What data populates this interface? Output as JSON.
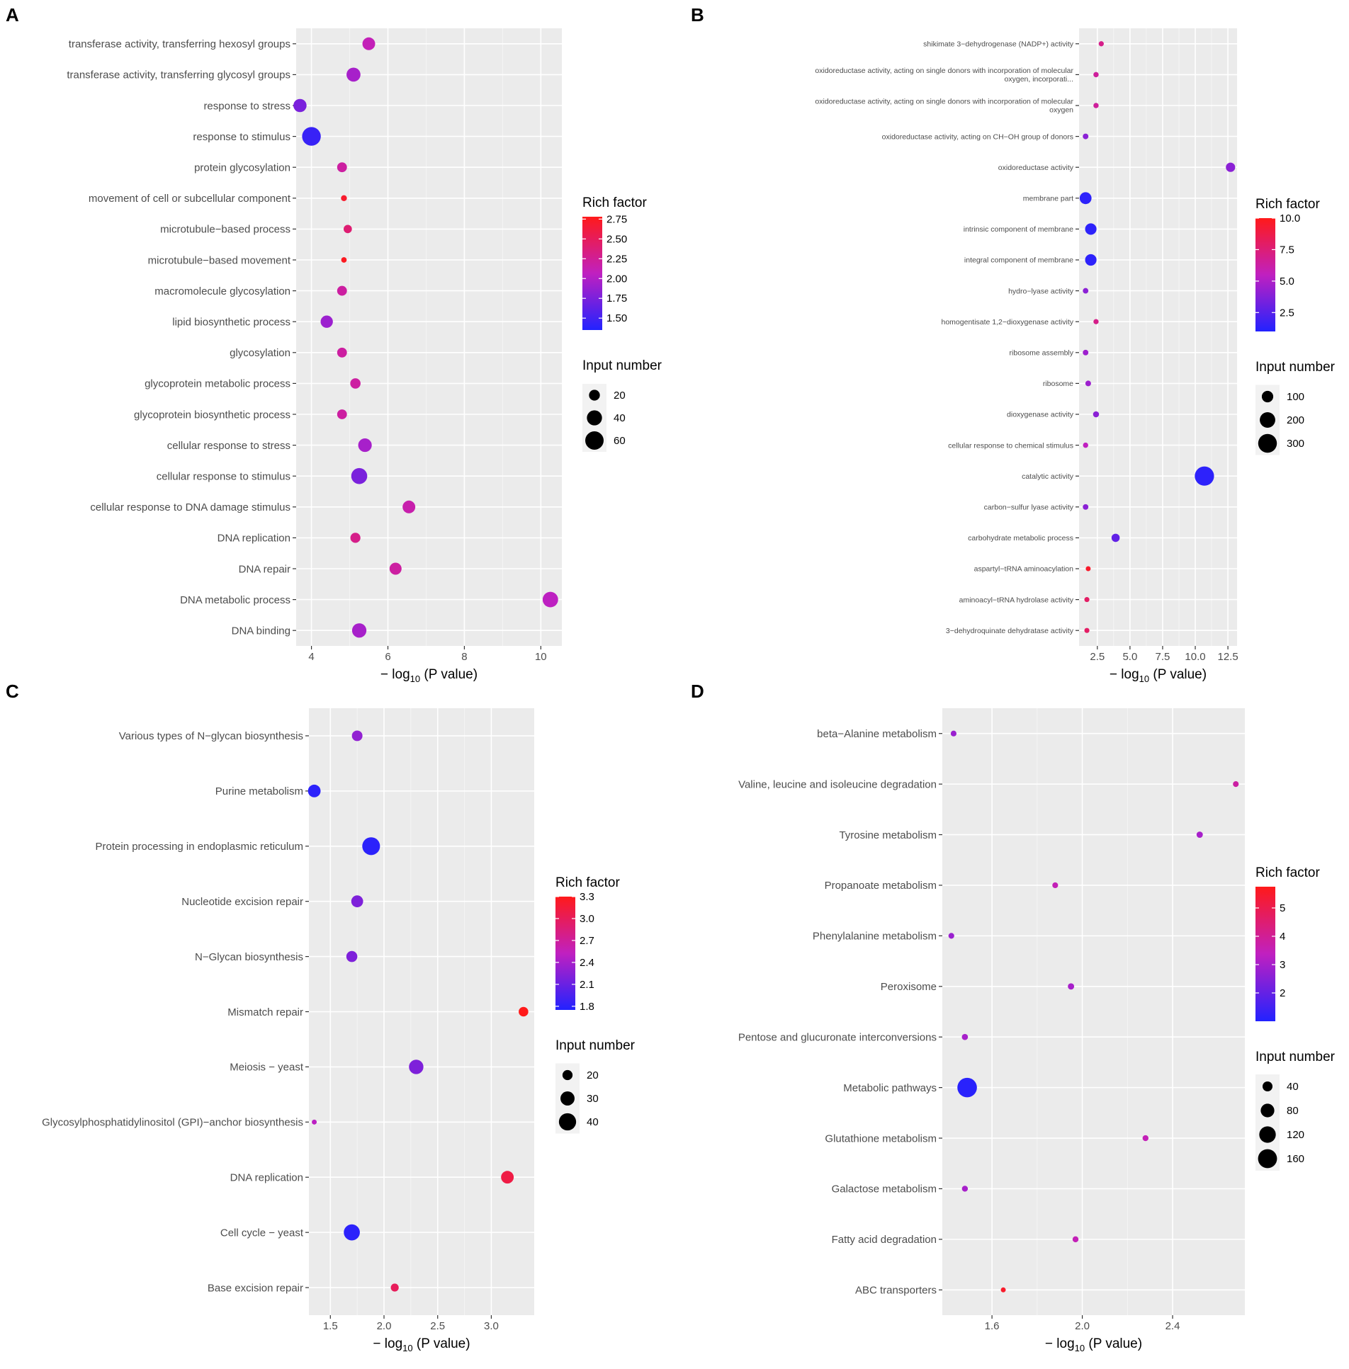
{
  "colors": {
    "low": "#2222ff",
    "mid": "#c020c0",
    "high": "#ff1a1a",
    "panel_bg": "#ebebeb",
    "grid": "#ffffff"
  },
  "legend": {
    "rich_title": "Rich factor",
    "size_title": "Input number"
  },
  "axis": {
    "xlabel_prefix": "− log",
    "xlabel_sub": "10",
    "xlabel_suffix": " (P value)"
  },
  "chart_data": [
    {
      "panel": "A",
      "type": "scatter",
      "xlabel": "− log10 (P value)",
      "xlim": [
        3.6,
        10.55
      ],
      "xticks": [
        4,
        6,
        8,
        10
      ],
      "xtick_labels": [
        "4",
        "6",
        "8",
        "10"
      ],
      "color_range": [
        1.35,
        2.78
      ],
      "color_ticks": [
        1.5,
        1.75,
        2.0,
        2.25,
        2.5,
        2.75
      ],
      "color_tick_labels": [
        "1.50",
        "1.75",
        "2.00",
        "2.25",
        "2.50",
        "2.75"
      ],
      "size_range": [
        3,
        70
      ],
      "size_ticks": [
        20,
        40,
        60
      ],
      "size_tick_labels": [
        "20",
        "40",
        "60"
      ],
      "terms": [
        {
          "label": "transferase activity, transferring hexosyl groups",
          "x": 5.5,
          "rich": 2.1,
          "n": 28
        },
        {
          "label": "transferase activity, transferring glycosyl groups",
          "x": 5.1,
          "rich": 1.95,
          "n": 34
        },
        {
          "label": "response to stress",
          "x": 3.7,
          "rich": 1.75,
          "n": 30
        },
        {
          "label": "response to stimulus",
          "x": 4.0,
          "rich": 1.45,
          "n": 62
        },
        {
          "label": "protein glycosylation",
          "x": 4.8,
          "rich": 2.2,
          "n": 16
        },
        {
          "label": "movement of cell or subcellular component",
          "x": 4.85,
          "rich": 2.7,
          "n": 5
        },
        {
          "label": "microtubule−based process",
          "x": 4.95,
          "rich": 2.4,
          "n": 11
        },
        {
          "label": "microtubule−based movement",
          "x": 4.85,
          "rich": 2.75,
          "n": 4
        },
        {
          "label": "macromolecule glycosylation",
          "x": 4.8,
          "rich": 2.2,
          "n": 16
        },
        {
          "label": "lipid biosynthetic process",
          "x": 4.4,
          "rich": 1.9,
          "n": 26
        },
        {
          "label": "glycosylation",
          "x": 4.8,
          "rich": 2.2,
          "n": 16
        },
        {
          "label": "glycoprotein metabolic process",
          "x": 5.15,
          "rich": 2.2,
          "n": 18
        },
        {
          "label": "glycoprotein biosynthetic process",
          "x": 4.8,
          "rich": 2.2,
          "n": 16
        },
        {
          "label": "cellular response to stress",
          "x": 5.4,
          "rich": 1.95,
          "n": 32
        },
        {
          "label": "cellular response to stimulus",
          "x": 5.25,
          "rich": 1.75,
          "n": 45
        },
        {
          "label": "cellular response to DNA damage stimulus",
          "x": 6.55,
          "rich": 2.15,
          "n": 28
        },
        {
          "label": "DNA replication",
          "x": 5.15,
          "rich": 2.3,
          "n": 17
        },
        {
          "label": "DNA repair",
          "x": 6.2,
          "rich": 2.2,
          "n": 25
        },
        {
          "label": "DNA metabolic process",
          "x": 10.25,
          "rich": 2.05,
          "n": 42
        },
        {
          "label": "DNA binding",
          "x": 5.25,
          "rich": 1.95,
          "n": 36
        }
      ]
    },
    {
      "panel": "B",
      "type": "scatter",
      "xlabel": "− log10 (P value)",
      "xlim": [
        1.1,
        13.2
      ],
      "xticks": [
        2.5,
        5.0,
        7.5,
        10.0,
        12.5
      ],
      "xtick_labels": [
        "2.5",
        "5.0",
        "7.5",
        "10.0",
        "12.5"
      ],
      "color_range": [
        1.0,
        10.0
      ],
      "color_ticks": [
        2.5,
        5.0,
        7.5,
        10.0
      ],
      "color_tick_labels": [
        "2.5",
        "5.0",
        "7.5",
        "10.0"
      ],
      "size_range": [
        3,
        340
      ],
      "size_ticks": [
        100,
        200,
        300
      ],
      "size_tick_labels": [
        "100",
        "200",
        "300"
      ],
      "terms": [
        {
          "label": "shikimate 3−dehydrogenase (NADP+) activity",
          "x": 2.8,
          "rich": 7.0,
          "n": 5
        },
        {
          "label": "oxidoreductase activity, acting on single donors with incorporation of molecular oxygen, incorporati...",
          "x": 2.4,
          "rich": 6.5,
          "n": 6
        },
        {
          "label": "oxidoreductase activity, acting on single donors with incorporation of molecular oxygen",
          "x": 2.4,
          "rich": 6.5,
          "n": 6
        },
        {
          "label": "oxidoreductase activity, acting on CH−OH group of donors",
          "x": 1.6,
          "rich": 4.0,
          "n": 10
        },
        {
          "label": "oxidoreductase activity",
          "x": 12.7,
          "rich": 4.0,
          "n": 60
        },
        {
          "label": "membrane part",
          "x": 1.6,
          "rich": 1.3,
          "n": 110
        },
        {
          "label": "intrinsic component of membrane",
          "x": 2.0,
          "rich": 1.3,
          "n": 100
        },
        {
          "label": "integral component of membrane",
          "x": 2.0,
          "rich": 1.3,
          "n": 100
        },
        {
          "label": "hydro−lyase activity",
          "x": 1.6,
          "rich": 4.0,
          "n": 9
        },
        {
          "label": "homogentisate 1,2−dioxygenase activity",
          "x": 2.4,
          "rich": 7.0,
          "n": 5
        },
        {
          "label": "ribosome assembly",
          "x": 1.6,
          "rich": 4.5,
          "n": 9
        },
        {
          "label": "ribosome",
          "x": 1.8,
          "rich": 4.5,
          "n": 10
        },
        {
          "label": "dioxygenase activity",
          "x": 2.4,
          "rich": 4.0,
          "n": 14
        },
        {
          "label": "cellular response to chemical stimulus",
          "x": 1.6,
          "rich": 5.5,
          "n": 6
        },
        {
          "label": "catalytic activity",
          "x": 10.7,
          "rich": 1.3,
          "n": 320
        },
        {
          "label": "carbon−sulfur lyase activity",
          "x": 1.6,
          "rich": 4.0,
          "n": 9
        },
        {
          "label": "carbohydrate metabolic process",
          "x": 3.9,
          "rich": 2.8,
          "n": 42
        },
        {
          "label": "aspartyl−tRNA aminoacylation",
          "x": 1.8,
          "rich": 9.5,
          "n": 3
        },
        {
          "label": "aminoacyl−tRNA hydrolase activity",
          "x": 1.7,
          "rich": 8.0,
          "n": 4
        },
        {
          "label": "3−dehydroquinate dehydratase activity",
          "x": 1.7,
          "rich": 8.0,
          "n": 4
        }
      ]
    },
    {
      "panel": "C",
      "type": "scatter",
      "xlabel": "− log10 (P value)",
      "xlim": [
        1.3,
        3.4
      ],
      "xticks": [
        1.5,
        2.0,
        2.5,
        3.0
      ],
      "xtick_labels": [
        "1.5",
        "2.0",
        "2.5",
        "3.0"
      ],
      "color_range": [
        1.75,
        3.3
      ],
      "color_ticks": [
        1.8,
        2.1,
        2.4,
        2.7,
        3.0,
        3.3
      ],
      "color_tick_labels": [
        "1.8",
        "2.1",
        "2.4",
        "2.7",
        "3.0",
        "3.3"
      ],
      "size_range": [
        12,
        50
      ],
      "size_ticks": [
        20,
        30,
        40
      ],
      "size_tick_labels": [
        "20",
        "30",
        "40"
      ],
      "terms": [
        {
          "label": "Various types of N−glycan biosynthesis",
          "x": 1.75,
          "rich": 2.3,
          "n": 21
        },
        {
          "label": "Purine metabolism",
          "x": 1.35,
          "rich": 1.8,
          "n": 26
        },
        {
          "label": "Protein processing in endoplasmic reticulum",
          "x": 1.88,
          "rich": 1.8,
          "n": 42
        },
        {
          "label": "Nucleotide excision repair",
          "x": 1.75,
          "rich": 2.2,
          "n": 24
        },
        {
          "label": "N−Glycan biosynthesis",
          "x": 1.7,
          "rich": 2.2,
          "n": 22
        },
        {
          "label": "Mismatch repair",
          "x": 3.3,
          "rich": 3.3,
          "n": 19
        },
        {
          "label": "Meiosis − yeast",
          "x": 2.3,
          "rich": 2.2,
          "n": 31
        },
        {
          "label": "Glycosylphosphatidylinositol (GPI)−anchor biosynthesis",
          "x": 1.35,
          "rich": 2.5,
          "n": 12
        },
        {
          "label": "DNA replication",
          "x": 3.15,
          "rich": 3.1,
          "n": 26
        },
        {
          "label": "Cell cycle − yeast",
          "x": 1.7,
          "rich": 1.8,
          "n": 36
        },
        {
          "label": "Base excision repair",
          "x": 2.1,
          "rich": 3.0,
          "n": 16
        }
      ]
    },
    {
      "panel": "D",
      "type": "scatter",
      "xlabel": "− log10 (P value)",
      "xlim": [
        1.38,
        2.72
      ],
      "xticks": [
        1.6,
        2.0,
        2.4
      ],
      "xtick_labels": [
        "1.6",
        "2.0",
        "2.4"
      ],
      "color_range": [
        1.0,
        5.75
      ],
      "color_ticks": [
        2,
        3,
        4,
        5
      ],
      "color_tick_labels": [
        "2",
        "3",
        "4",
        "5"
      ],
      "size_range": [
        6,
        175
      ],
      "size_ticks": [
        40,
        80,
        120,
        160
      ],
      "size_tick_labels": [
        "40",
        "80",
        "120",
        "160"
      ],
      "terms": [
        {
          "label": "beta−Alanine metabolism",
          "x": 1.43,
          "rich": 2.8,
          "n": 10
        },
        {
          "label": "Valine, leucine and isoleucine degradation",
          "x": 2.68,
          "rich": 3.8,
          "n": 10
        },
        {
          "label": "Tyrosine metabolism",
          "x": 2.52,
          "rich": 3.0,
          "n": 13
        },
        {
          "label": "Propanoate metabolism",
          "x": 1.88,
          "rich": 3.5,
          "n": 10
        },
        {
          "label": "Phenylalanine metabolism",
          "x": 1.42,
          "rich": 2.8,
          "n": 10
        },
        {
          "label": "Peroxisome",
          "x": 1.95,
          "rich": 3.0,
          "n": 13
        },
        {
          "label": "Pentose and glucuronate interconversions",
          "x": 1.48,
          "rich": 3.0,
          "n": 12
        },
        {
          "label": "Metabolic pathways",
          "x": 1.49,
          "rich": 1.1,
          "n": 170
        },
        {
          "label": "Glutathione metabolism",
          "x": 2.28,
          "rich": 3.5,
          "n": 11
        },
        {
          "label": "Galactose metabolism",
          "x": 1.48,
          "rich": 3.0,
          "n": 11
        },
        {
          "label": "Fatty acid degradation",
          "x": 1.97,
          "rich": 3.5,
          "n": 11
        },
        {
          "label": "ABC transporters",
          "x": 1.65,
          "rich": 5.5,
          "n": 6
        }
      ]
    }
  ]
}
